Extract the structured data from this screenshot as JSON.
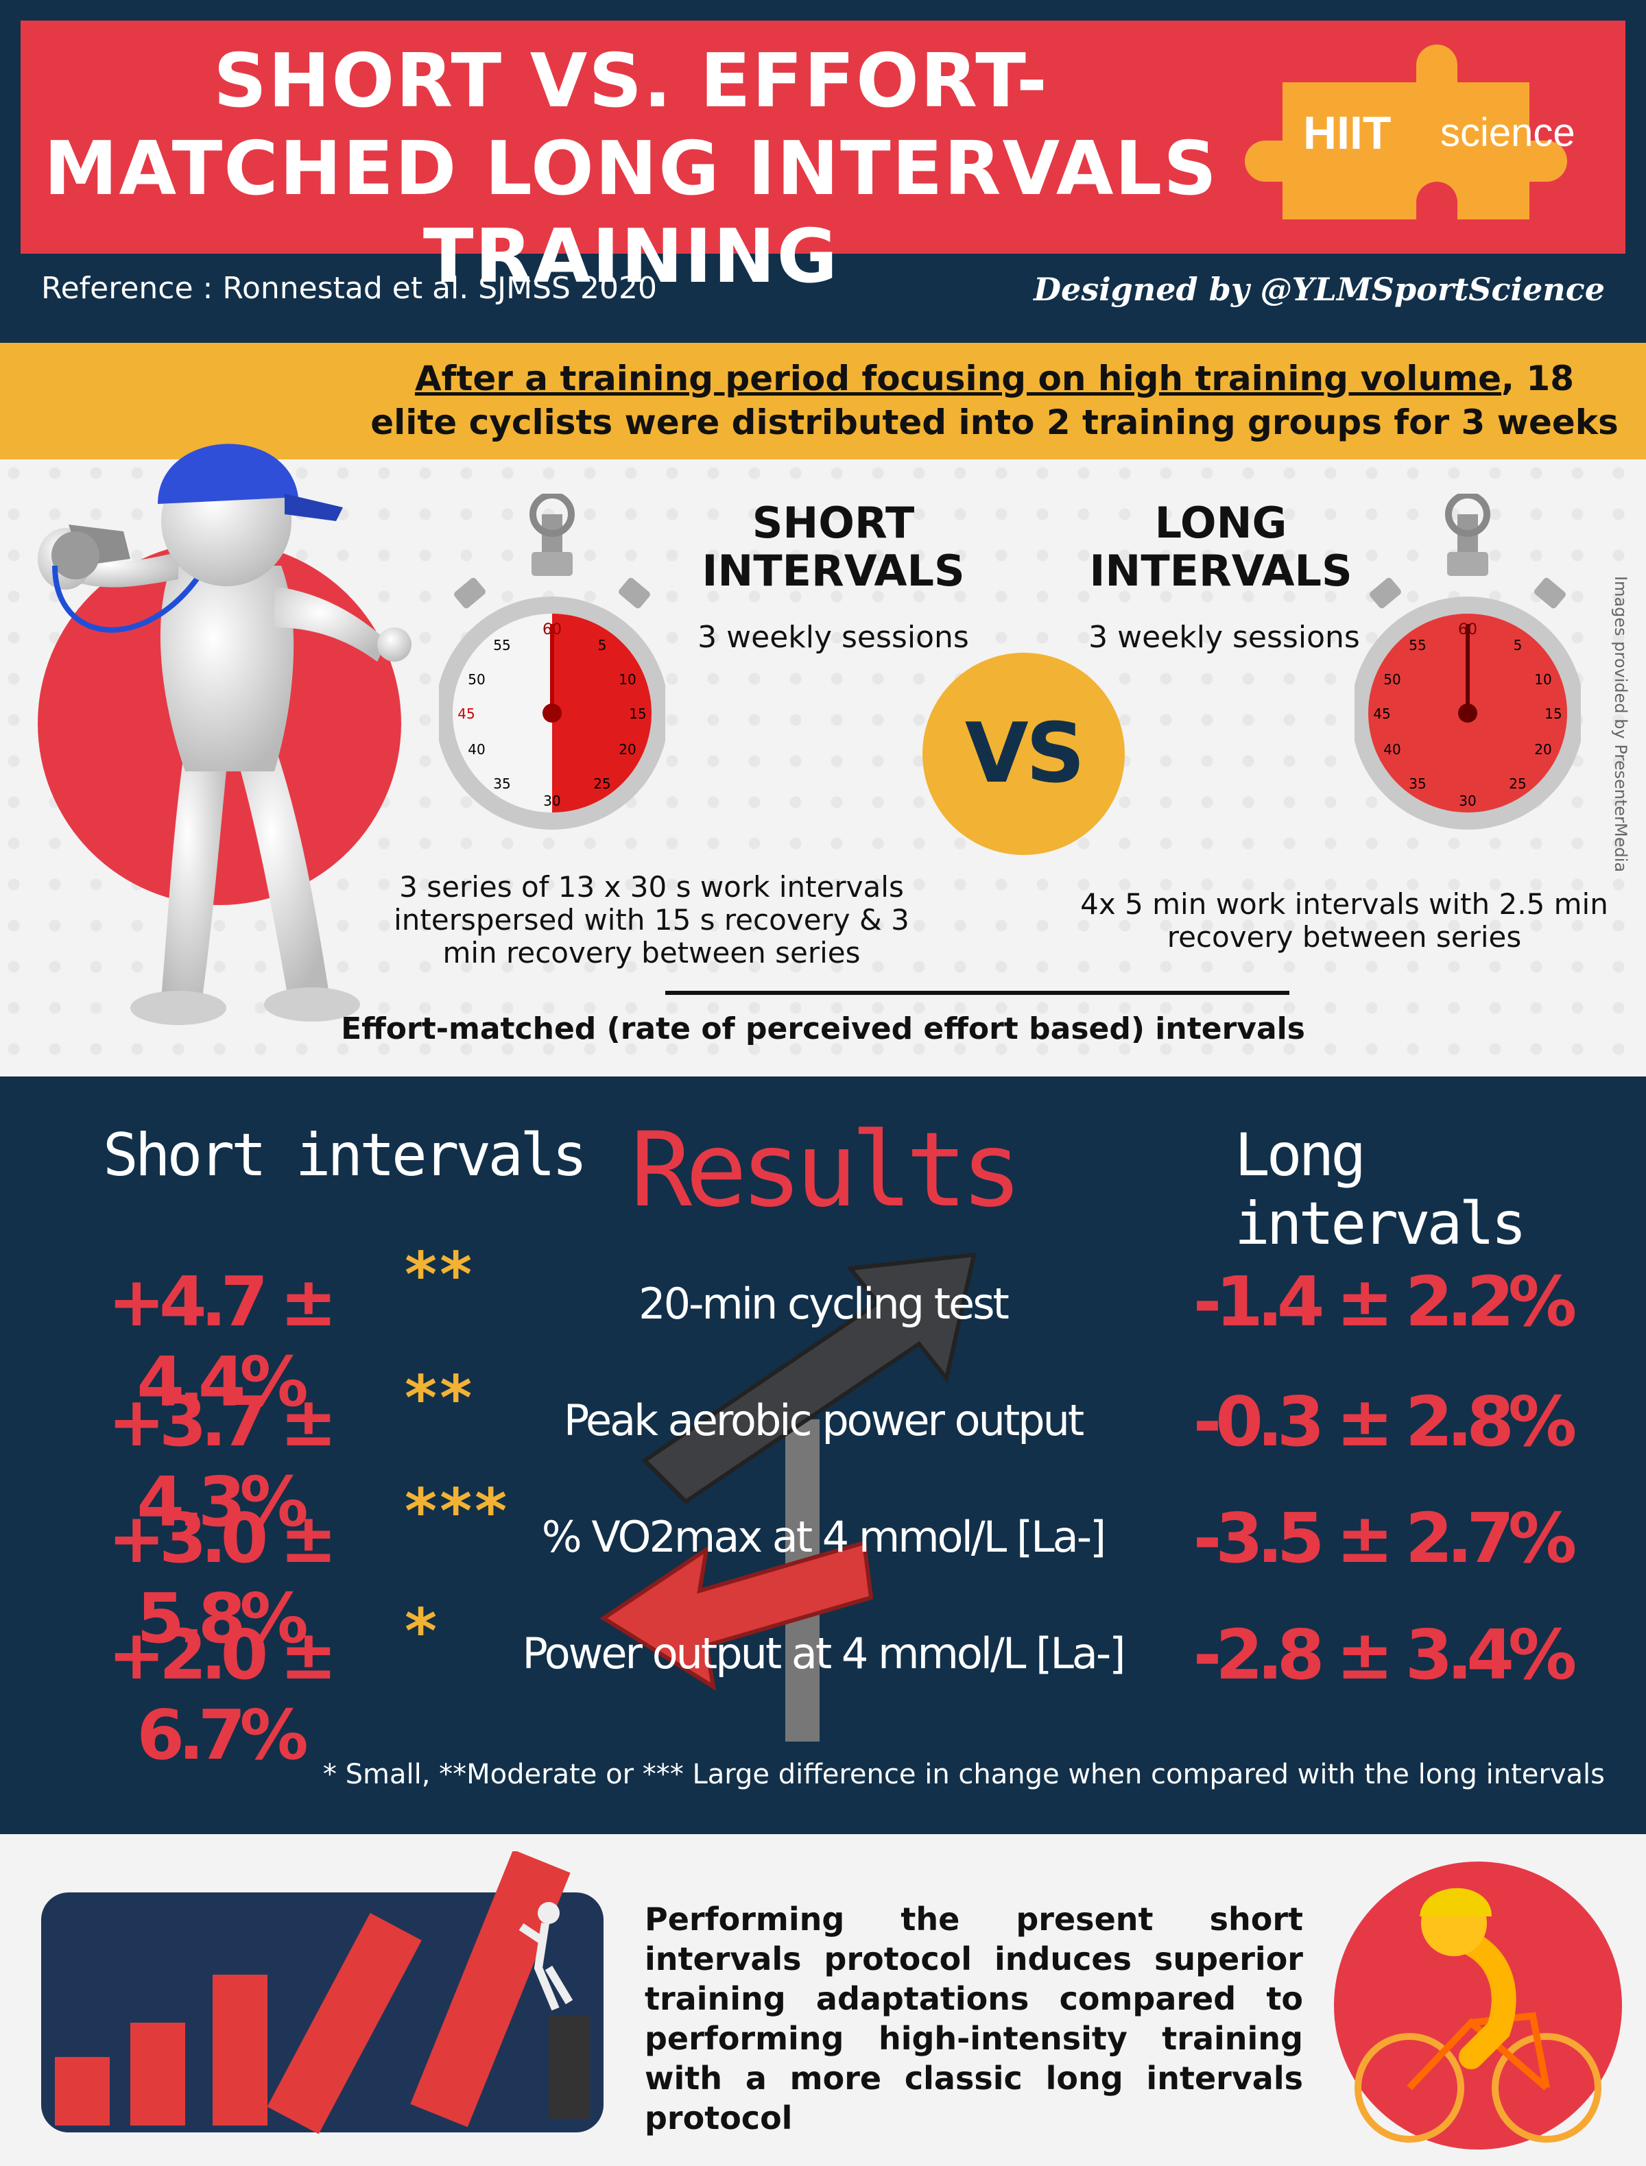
{
  "header": {
    "title": "SHORT VS. EFFORT-MATCHED LONG INTERVALS TRAINING",
    "logo_hiit": "HIIT",
    "logo_science": "science",
    "reference": "Reference : Ronnestad et al. SJMSS 2020",
    "credit": "Designed by @YLMSportScience"
  },
  "intro": {
    "underlined": "After a training period focusing on high training volume",
    "rest": ", 18 elite cyclists were distributed into 2 training groups for 3 weeks"
  },
  "protocol": {
    "short_title": "SHORT INTERVALS",
    "long_title": "LONG INTERVALS",
    "short_sessions": "3 weekly sessions",
    "long_sessions": "3 weekly sessions",
    "vs": "VS",
    "short_desc": "3 series of 13 x 30 s work intervals interspersed with 15 s recovery & 3 min recovery between series",
    "long_desc": "4x 5 min work intervals with 2.5 min recovery between series",
    "effort_note": "Effort-matched (rate of perceived effort based) intervals",
    "image_credit": "Images provided by PresenterMedia",
    "watch_numbers": [
      "60",
      "5",
      "10",
      "15",
      "20",
      "25",
      "30",
      "35",
      "40",
      "45",
      "50",
      "55"
    ]
  },
  "results": {
    "title": "Results",
    "short_header": "Short intervals",
    "long_header": "Long intervals",
    "rows": [
      {
        "short": "+4.7 ± 4.4%",
        "stars": "**",
        "metric": "20-min cycling test",
        "long": "-1.4 ± 2.2%"
      },
      {
        "short": "+3.7 ± 4.3%",
        "stars": "**",
        "metric": "Peak aerobic power output",
        "long": "-0.3 ± 2.8%"
      },
      {
        "short": "+3.0 ± 5.8%",
        "stars": "***",
        "metric": "% VO2max at 4 mmol/L [La-]",
        "long": "-3.5 ± 2.7%"
      },
      {
        "short": "+2.0 ± 6.7%",
        "stars": "*",
        "metric": "Power output at 4 mmol/L [La-]",
        "long": "-2.8 ± 3.4%"
      }
    ],
    "footnote": "* Small, **Moderate or *** Large difference in change when compared with the long intervals"
  },
  "conclusion": {
    "text": "Performing the present short intervals protocol induces superior training adaptations compared to performing high-intensity training with a more classic long intervals protocol"
  },
  "colors": {
    "red": "#e63946",
    "navy": "#12304a",
    "yellow": "#f2b233",
    "orange": "#f7a833",
    "light_bg": "#f3f3f3"
  },
  "icons": [
    "whistle-figure-icon",
    "stopwatch-icon",
    "arrow-signpost-icon",
    "rising-bars-icon",
    "cyclist-icon",
    "puzzle-logo-icon"
  ]
}
